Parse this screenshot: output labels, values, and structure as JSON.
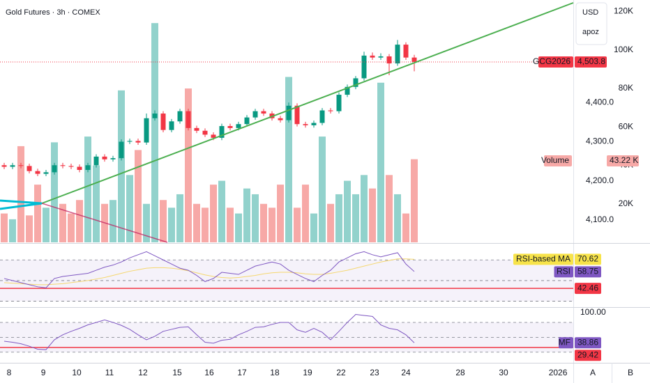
{
  "chart_data": [
    {
      "type": "candlestick",
      "title": "Gold Futures · 3h · COMEX",
      "currency": "USD",
      "account": "apoz",
      "symbol": "GCG2026",
      "last_label": "4,503.8",
      "xlim": [
        -0.5,
        68
      ],
      "xticks": [
        {
          "value": 0.58,
          "label": "8"
        },
        {
          "value": 4.67,
          "label": "9"
        },
        {
          "value": 8.67,
          "label": "10"
        },
        {
          "value": 12.58,
          "label": "11"
        },
        {
          "value": 16.58,
          "label": "12"
        },
        {
          "value": 20.67,
          "label": "15"
        },
        {
          "value": 24.5,
          "label": "16"
        },
        {
          "value": 28.42,
          "label": "17"
        },
        {
          "value": 32.33,
          "label": "18"
        },
        {
          "value": 36.25,
          "label": "19"
        },
        {
          "value": 40.25,
          "label": "22"
        },
        {
          "value": 44.25,
          "label": "23"
        },
        {
          "value": 48,
          "label": "24"
        },
        {
          "value": 54.5,
          "label": "28"
        },
        {
          "value": 59.67,
          "label": "30"
        },
        {
          "value": 66.17,
          "label": "2026"
        }
      ],
      "ylim": [
        4043,
        4662
      ],
      "yticks": [
        {
          "value": 4100,
          "label": "4,100.0"
        },
        {
          "value": 4200,
          "label": "4,200.0"
        },
        {
          "value": 4300,
          "label": "4,300.0"
        },
        {
          "value": 4400,
          "label": "4,400.0"
        }
      ],
      "up_color": "#089981",
      "down_color": "#f23645",
      "open": [
        4240,
        4236,
        4240,
        4238,
        4225,
        4218,
        4222,
        4240,
        4238,
        4236,
        4228,
        4240,
        4262,
        4255,
        4258,
        4300,
        4302,
        4298,
        4360,
        4372,
        4330,
        4352,
        4378,
        4335,
        4328,
        4318,
        4310,
        4340,
        4335,
        4345,
        4362,
        4378,
        4372,
        4360,
        4355,
        4392,
        4345,
        4342,
        4348,
        4380,
        4378,
        4420,
        4440,
        4462,
        4520,
        4515,
        4518,
        4500,
        4548,
        4515
      ],
      "high": [
        4246,
        4246,
        4246,
        4244,
        4231,
        4228,
        4246,
        4246,
        4244,
        4242,
        4246,
        4268,
        4268,
        4264,
        4306,
        4308,
        4308,
        4372,
        4380,
        4378,
        4358,
        4384,
        4384,
        4341,
        4334,
        4324,
        4346,
        4346,
        4351,
        4368,
        4384,
        4384,
        4378,
        4366,
        4400,
        4398,
        4351,
        4354,
        4386,
        4386,
        4426,
        4446,
        4468,
        4530,
        4528,
        4526,
        4524,
        4560,
        4554,
        4522
      ],
      "low": [
        4230,
        4230,
        4232,
        4219,
        4212,
        4212,
        4216,
        4232,
        4230,
        4222,
        4222,
        4234,
        4249,
        4249,
        4252,
        4294,
        4292,
        4292,
        4354,
        4324,
        4324,
        4346,
        4329,
        4322,
        4312,
        4304,
        4304,
        4329,
        4329,
        4339,
        4356,
        4366,
        4354,
        4349,
        4349,
        4339,
        4336,
        4336,
        4342,
        4372,
        4372,
        4414,
        4434,
        4456,
        4509,
        4509,
        4470,
        4494,
        4509,
        4480
      ],
      "close": [
        4236,
        4240,
        4238,
        4225,
        4218,
        4222,
        4240,
        4238,
        4236,
        4228,
        4240,
        4262,
        4255,
        4258,
        4300,
        4302,
        4298,
        4360,
        4372,
        4330,
        4352,
        4378,
        4335,
        4328,
        4318,
        4310,
        4340,
        4335,
        4345,
        4362,
        4378,
        4372,
        4360,
        4355,
        4392,
        4345,
        4342,
        4348,
        4380,
        4378,
        4420,
        4440,
        4462,
        4520,
        4515,
        4518,
        4500,
        4548,
        4515,
        4503.8
      ]
    },
    {
      "type": "bar",
      "name": "Volume",
      "last_label": "43.22 K",
      "up_color": "#92d2cc",
      "down_color": "#f7a9a7",
      "ylim": [
        0,
        126
      ],
      "yticks": [
        {
          "value": 20,
          "label": "20K"
        },
        {
          "value": 40,
          "label": "40K"
        },
        {
          "value": 60,
          "label": "60K"
        },
        {
          "value": 80,
          "label": "80K"
        },
        {
          "value": 100,
          "label": "100K"
        },
        {
          "value": 120,
          "label": "120K"
        }
      ],
      "values": [
        15,
        12,
        50,
        14,
        30,
        18,
        52,
        20,
        15,
        22,
        55,
        40,
        20,
        22,
        79,
        35,
        48,
        20,
        114,
        22,
        18,
        25,
        80,
        20,
        18,
        30,
        32,
        18,
        15,
        28,
        25,
        20,
        18,
        30,
        86,
        18,
        30,
        15,
        55,
        20,
        25,
        32,
        25,
        35,
        28,
        83,
        35,
        25,
        15,
        43.22
      ]
    },
    {
      "type": "line",
      "ylim": [
        25,
        85
      ],
      "levels": [
        70,
        50,
        30
      ],
      "hline": 42.46,
      "hline_color": "#f23645",
      "series": [
        {
          "name": "RSI-based MA",
          "color": "#f5d76e",
          "label_color": "#f7e34a",
          "values": [
            48,
            47.5,
            47,
            46.5,
            46,
            46,
            46.5,
            47,
            48,
            49,
            50,
            51.5,
            53,
            55,
            57,
            59,
            60.5,
            62,
            62.5,
            62.5,
            62,
            61,
            59.5,
            57.5,
            55.5,
            54,
            53,
            52.5,
            53,
            54,
            55,
            56.5,
            57.5,
            58,
            58,
            57.5,
            56.5,
            56,
            56,
            57,
            58.5,
            60,
            62,
            64,
            66,
            68,
            69.5,
            71,
            71,
            70.62
          ]
        },
        {
          "name": "RSI",
          "color": "#7e57c2",
          "label_color": "#7e57c2",
          "values": [
            52,
            50,
            48,
            46,
            44,
            43,
            52,
            54,
            55,
            56,
            57,
            60,
            63,
            65,
            68,
            72,
            75,
            78,
            74,
            70,
            66,
            62,
            60,
            55,
            49,
            52,
            58,
            57,
            56,
            60,
            64,
            66,
            68,
            66,
            60,
            56,
            52,
            49,
            55,
            60,
            68,
            72,
            76,
            78,
            75,
            73,
            75,
            77,
            66,
            58.75
          ]
        }
      ]
    },
    {
      "type": "line",
      "ylim": [
        0,
        108
      ],
      "levels": [
        80,
        50,
        20
      ],
      "hline": 29.42,
      "hline_color": "#f23645",
      "yticks": [
        {
          "value": 100,
          "label": "100.00"
        }
      ],
      "series": [
        {
          "name": "MF",
          "color": "#7e57c2",
          "label_color": "#7e57c2",
          "values": [
            42,
            40,
            37,
            32,
            26,
            25,
            45,
            55,
            62,
            68,
            75,
            80,
            85,
            80,
            74,
            66,
            55,
            45,
            52,
            62,
            66,
            70,
            71,
            55,
            40,
            38,
            44,
            46,
            55,
            62,
            70,
            71,
            76,
            80,
            80,
            65,
            60,
            68,
            60,
            45,
            62,
            80,
            96,
            94,
            92,
            75,
            68,
            65,
            55,
            38.86
          ]
        }
      ]
    }
  ],
  "ui": {
    "buttons": [
      "A",
      "B"
    ]
  }
}
